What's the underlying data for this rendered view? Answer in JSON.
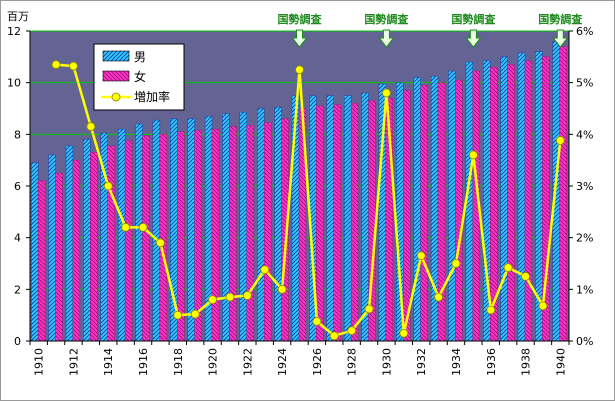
{
  "chart_data": {
    "type": "bar",
    "ylabel": "百万",
    "ylim": [
      0,
      12
    ],
    "y2lim": [
      0,
      6
    ],
    "yticks": [
      "0",
      "2",
      "4",
      "6",
      "8",
      "10",
      "12"
    ],
    "y2ticks": [
      "0%",
      "1%",
      "2%",
      "3%",
      "4%",
      "5%",
      "6%"
    ],
    "years": [
      1910,
      1911,
      1912,
      1913,
      1914,
      1915,
      1916,
      1917,
      1918,
      1919,
      1920,
      1921,
      1922,
      1923,
      1924,
      1925,
      1926,
      1927,
      1928,
      1929,
      1930,
      1931,
      1932,
      1933,
      1934,
      1935,
      1936,
      1937,
      1938,
      1939,
      1940
    ],
    "xtick_labels": [
      "1910",
      "1912",
      "1914",
      "1916",
      "1918",
      "1920",
      "1922",
      "1924",
      "1926",
      "1928",
      "1930",
      "1932",
      "1934",
      "1936",
      "1938",
      "1940"
    ],
    "series": [
      {
        "name": "男",
        "kind": "bar",
        "color": "#33ccff",
        "values": [
          6.9,
          7.2,
          7.55,
          7.8,
          8.05,
          8.2,
          8.4,
          8.55,
          8.6,
          8.6,
          8.7,
          8.8,
          8.85,
          9.0,
          9.05,
          9.5,
          9.5,
          9.5,
          9.5,
          9.6,
          9.95,
          10.0,
          10.2,
          10.25,
          10.45,
          10.8,
          10.85,
          11.0,
          11.15,
          11.2,
          11.6
        ]
      },
      {
        "name": "女",
        "kind": "bar",
        "color": "#ff33cc",
        "values": [
          6.2,
          6.5,
          7.0,
          7.3,
          7.55,
          7.75,
          7.95,
          8.0,
          8.1,
          8.15,
          8.2,
          8.3,
          8.35,
          8.45,
          8.6,
          9.0,
          9.1,
          9.15,
          9.2,
          9.3,
          9.4,
          9.7,
          9.9,
          10.0,
          10.1,
          10.45,
          10.6,
          10.7,
          10.85,
          11.0,
          11.4
        ]
      },
      {
        "name": "増加率",
        "kind": "line",
        "color": "#ffff00",
        "axis": "right",
        "values": [
          null,
          5.35,
          5.32,
          4.15,
          3.0,
          2.2,
          2.2,
          1.9,
          0.5,
          0.52,
          0.8,
          0.85,
          0.88,
          1.38,
          1.0,
          5.25,
          0.38,
          0.1,
          0.2,
          0.62,
          4.8,
          0.15,
          1.65,
          0.85,
          1.5,
          3.6,
          0.6,
          1.42,
          1.25,
          0.68,
          3.88
        ]
      }
    ],
    "annotations": [
      {
        "text": "国勢調査",
        "year": 1925
      },
      {
        "text": "国勢調査",
        "year": 1930
      },
      {
        "text": "国勢調査",
        "year": 1935
      },
      {
        "text": "国勢調査",
        "year": 1940
      }
    ],
    "legend_position": "top-left",
    "grid": "horizontal"
  }
}
